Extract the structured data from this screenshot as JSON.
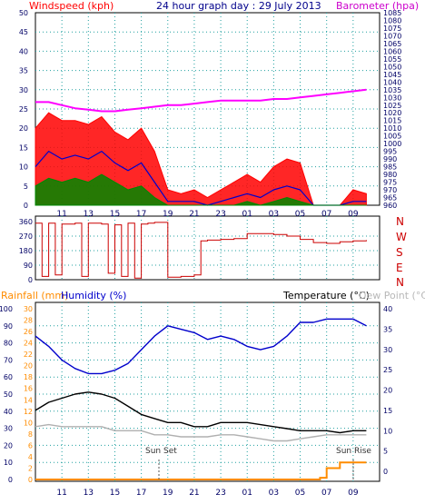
{
  "header": {
    "wind_title": "Windspeed (kph)",
    "graph_title": "24 hour graph day : 29 July 2013",
    "baro_title": "Barometer (hpa)"
  },
  "middle": {
    "dir_labels": [
      "N",
      "W",
      "S",
      "E",
      "N"
    ]
  },
  "bottom_header": {
    "rain_title": "Rainfall (mm)",
    "humidity_title": "Humidity (%)",
    "temp_title": "Temperature (°C)",
    "dew_title": "Dew Point (°C)"
  },
  "annotations": {
    "sunset": "Sun Set",
    "sunrise": "Sun Rise"
  },
  "colors": {
    "wind_gust": "#ff0000",
    "wind_avg": "#0000cc",
    "wind_low": "#008800",
    "barometer": "#ff00ff",
    "direction": "#cc0000",
    "humidity": "#0000cc",
    "temperature": "#000000",
    "dew_point": "#b0b0b0",
    "rainfall": "#ff8c00"
  },
  "chart_data": [
    {
      "type": "line",
      "id": "wind",
      "x_ticks": [
        "11",
        "13",
        "15",
        "17",
        "19",
        "21",
        "23",
        "01",
        "03",
        "05",
        "07",
        "09"
      ],
      "left_axis": {
        "label": "Windspeed (kph)",
        "ylim": [
          0,
          50
        ],
        "ticks": [
          0,
          5,
          10,
          15,
          20,
          25,
          30,
          35,
          40,
          45,
          50
        ]
      },
      "right_axis": {
        "label": "Barometer (hpa)",
        "ylim": [
          960,
          1085
        ],
        "ticks": [
          960,
          965,
          970,
          975,
          980,
          985,
          990,
          995,
          1000,
          1005,
          1010,
          1015,
          1020,
          1025,
          1030,
          1035,
          1040,
          1045,
          1050,
          1055,
          1060,
          1065,
          1070,
          1075,
          1080,
          1085
        ],
        "tick_labels": [
          "960",
          "965",
          "970",
          "975",
          "980",
          "985",
          "990",
          "995",
          "1000",
          "1005",
          "1010",
          "1015",
          "1020",
          "1025",
          "1030",
          "1035",
          "1040",
          "1045",
          "1050",
          "1055",
          "1060",
          "1065",
          "1070",
          "1075",
          "1080",
          "1085"
        ]
      },
      "series": [
        {
          "name": "Gust",
          "axis": "left",
          "hours": [
            0,
            1,
            2,
            3,
            4,
            5,
            6,
            7,
            8,
            9,
            10,
            11,
            12,
            13,
            14,
            15,
            16,
            17,
            18,
            19,
            20,
            21,
            22,
            23,
            24,
            25
          ],
          "values": [
            20,
            24,
            22,
            22,
            21,
            23,
            19,
            17,
            20,
            14,
            4,
            3,
            4,
            2,
            4,
            6,
            8,
            6,
            10,
            12,
            11,
            0,
            0,
            0,
            4,
            3
          ]
        },
        {
          "name": "Average",
          "axis": "left",
          "hours": [
            0,
            1,
            2,
            3,
            4,
            5,
            6,
            7,
            8,
            9,
            10,
            11,
            12,
            13,
            14,
            15,
            16,
            17,
            18,
            19,
            20,
            21,
            22,
            23,
            24,
            25
          ],
          "values": [
            10,
            14,
            12,
            13,
            12,
            14,
            11,
            9,
            11,
            6,
            1,
            1,
            1,
            0,
            1,
            2,
            3,
            2,
            4,
            5,
            4,
            0,
            0,
            0,
            1,
            1
          ]
        },
        {
          "name": "Low",
          "axis": "left",
          "hours": [
            0,
            1,
            2,
            3,
            4,
            5,
            6,
            7,
            8,
            9,
            10,
            11,
            12,
            13,
            14,
            15,
            16,
            17,
            18,
            19,
            20,
            21,
            22,
            23,
            24,
            25
          ],
          "values": [
            5,
            7,
            6,
            7,
            6,
            8,
            6,
            4,
            5,
            2,
            0,
            0,
            0,
            0,
            0,
            0,
            1,
            0,
            1,
            2,
            1,
            0,
            0,
            0,
            0,
            0
          ]
        },
        {
          "name": "Barometer",
          "axis": "right",
          "hours": [
            0,
            1,
            2,
            3,
            4,
            5,
            6,
            7,
            8,
            9,
            10,
            11,
            12,
            13,
            14,
            15,
            16,
            17,
            18,
            19,
            20,
            21,
            22,
            23,
            24,
            25
          ],
          "values": [
            1027,
            1027,
            1025,
            1023,
            1022,
            1021,
            1021,
            1022,
            1023,
            1024,
            1025,
            1025,
            1026,
            1027,
            1028,
            1028,
            1028,
            1028,
            1029,
            1029,
            1030,
            1031,
            1032,
            1033,
            1034,
            1035
          ]
        }
      ]
    },
    {
      "type": "line",
      "id": "direction",
      "x_ticks": [
        "11",
        "13",
        "15",
        "17",
        "19",
        "21",
        "23",
        "01",
        "03",
        "05",
        "07",
        "09"
      ],
      "ylim": [
        0,
        360
      ],
      "ticks": [
        0,
        90,
        180,
        270,
        360
      ],
      "series": [
        {
          "name": "Direction",
          "hours": [
            0,
            0.5,
            1,
            1.5,
            2,
            3,
            3.5,
            4,
            5,
            5.5,
            6,
            6.5,
            7,
            7.5,
            8,
            8.5,
            9,
            10,
            11,
            12,
            12.5,
            13,
            14,
            15,
            16,
            17,
            18,
            19,
            20,
            21,
            22,
            23,
            24,
            25
          ],
          "values": [
            350,
            20,
            350,
            30,
            345,
            350,
            20,
            350,
            345,
            40,
            340,
            20,
            350,
            10,
            345,
            350,
            355,
            15,
            20,
            30,
            240,
            245,
            250,
            255,
            285,
            285,
            280,
            270,
            250,
            230,
            225,
            235,
            240,
            245
          ]
        }
      ]
    },
    {
      "type": "line",
      "id": "temp_humidity",
      "x_ticks": [
        "11",
        "13",
        "15",
        "17",
        "19",
        "21",
        "23",
        "01",
        "03",
        "05",
        "07",
        "09"
      ],
      "humidity_axis": {
        "label": "Humidity (%)",
        "ylim": [
          0,
          100
        ],
        "ticks": [
          0,
          10,
          20,
          30,
          40,
          50,
          60,
          70,
          80,
          90,
          100
        ]
      },
      "rainfall_axis": {
        "label": "Rainfall (mm)",
        "ylim": [
          0,
          30
        ],
        "ticks": [
          0,
          2,
          4,
          6,
          8,
          10,
          12,
          14,
          16,
          18,
          20,
          22,
          24,
          26,
          28,
          30
        ]
      },
      "temperature_axis": {
        "label": "Temperature (°C)",
        "ylim": [
          -2,
          40
        ],
        "ticks": [
          0,
          5,
          10,
          15,
          20,
          25,
          30,
          35,
          40
        ]
      },
      "series": [
        {
          "name": "Humidity",
          "axis": "humidity",
          "hours": [
            0,
            1,
            2,
            3,
            4,
            5,
            6,
            7,
            8,
            9,
            10,
            11,
            12,
            13,
            14,
            15,
            16,
            17,
            18,
            19,
            20,
            21,
            22,
            23,
            24,
            25
          ],
          "values": [
            84,
            78,
            70,
            65,
            62,
            62,
            64,
            68,
            76,
            84,
            90,
            88,
            86,
            82,
            84,
            82,
            78,
            76,
            78,
            84,
            92,
            92,
            94,
            94,
            94,
            90
          ]
        },
        {
          "name": "Temperature",
          "axis": "temperature",
          "hours": [
            0,
            1,
            2,
            3,
            4,
            5,
            6,
            7,
            8,
            9,
            10,
            11,
            12,
            13,
            14,
            15,
            16,
            17,
            18,
            19,
            20,
            21,
            22,
            23,
            24,
            25
          ],
          "values": [
            15,
            17,
            18,
            19,
            19.5,
            19,
            18,
            16,
            14,
            13,
            12,
            12,
            11,
            11,
            12,
            12,
            12,
            11.5,
            11,
            10.5,
            10,
            10,
            10,
            9.5,
            10,
            10
          ]
        },
        {
          "name": "Dew Point",
          "axis": "temperature",
          "hours": [
            0,
            1,
            2,
            3,
            4,
            5,
            6,
            7,
            8,
            9,
            10,
            11,
            12,
            13,
            14,
            15,
            16,
            17,
            18,
            19,
            20,
            21,
            22,
            23,
            24,
            25
          ],
          "values": [
            11,
            11.5,
            11,
            11,
            11,
            11,
            10,
            10,
            10,
            9,
            9,
            8.5,
            8.5,
            8.5,
            9,
            9,
            8.5,
            8,
            7.5,
            7.5,
            8,
            8.5,
            9,
            9,
            9,
            9
          ]
        },
        {
          "name": "Rainfall",
          "axis": "rainfall",
          "hours": [
            0,
            5,
            10,
            15,
            20,
            21,
            21.5,
            22,
            23,
            24,
            25
          ],
          "values": [
            0,
            0,
            0,
            0,
            0,
            0,
            0.3,
            2,
            3,
            3,
            3
          ]
        }
      ]
    }
  ]
}
